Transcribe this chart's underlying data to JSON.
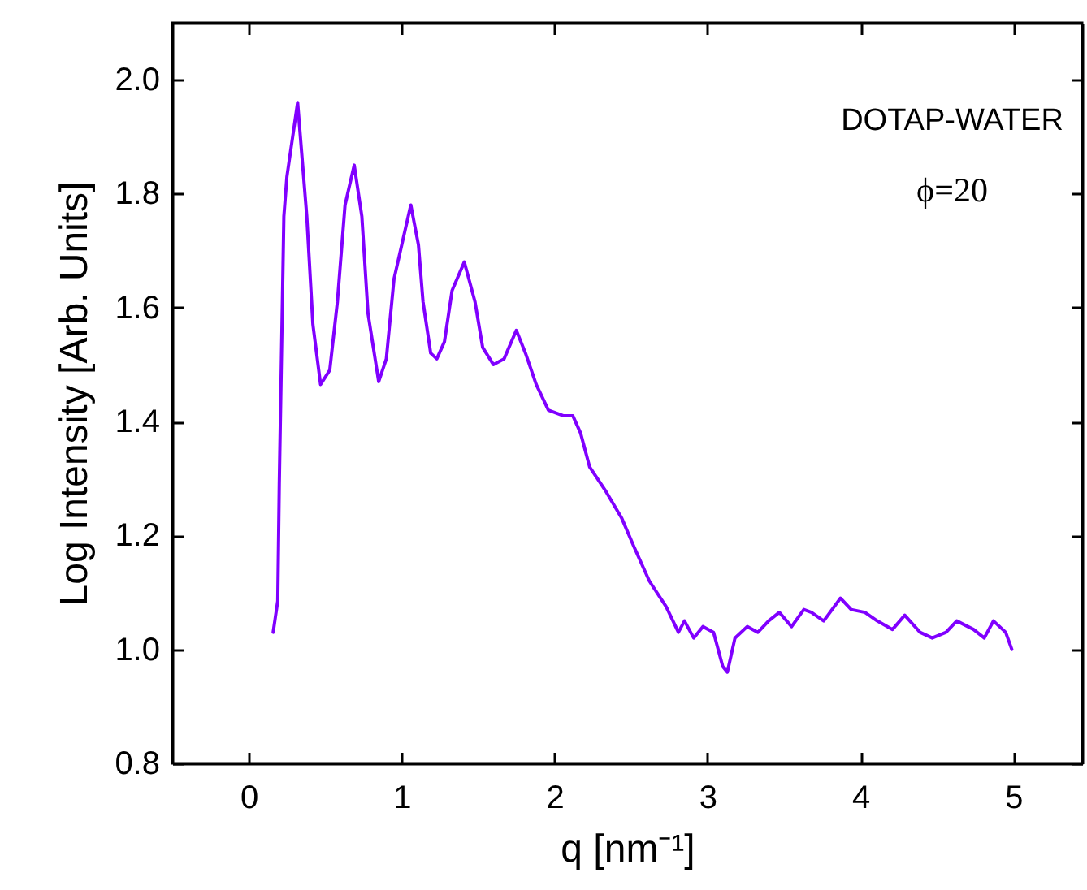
{
  "chart_data": {
    "type": "line",
    "xlabel": "q [nm⁻¹]",
    "ylabel": "Log Intensity [Arb. Units]",
    "annotations": [
      "DOTAP-WATER",
      "ϕ=20"
    ],
    "xlim": [
      -0.5,
      5.45
    ],
    "ylim": [
      0.8,
      2.1
    ],
    "xticks": [
      0,
      1,
      2,
      3,
      4,
      5
    ],
    "yticks": [
      0.8,
      {
        "value": 1,
        "label": "1.0"
      },
      1.2,
      1.4,
      1.6,
      1.8,
      {
        "value": 2,
        "label": "2.0"
      }
    ],
    "grid": false,
    "marker": "none",
    "line_style": "solid",
    "series": [
      {
        "color": "#8000ff",
        "x": [
          0.16,
          0.19,
          0.2,
          0.23,
          0.25,
          0.32,
          0.38,
          0.42,
          0.47,
          0.53,
          0.58,
          0.63,
          0.69,
          0.74,
          0.78,
          0.85,
          0.9,
          0.95,
          1.06,
          1.11,
          1.14,
          1.19,
          1.23,
          1.28,
          1.33,
          1.41,
          1.48,
          1.53,
          1.6,
          1.67,
          1.75,
          1.81,
          1.88,
          1.96,
          2.06,
          2.12,
          2.17,
          2.23,
          2.33,
          2.44,
          2.52,
          2.62,
          2.73,
          2.81,
          2.85,
          2.91,
          2.97,
          3.04,
          3.1,
          3.13,
          3.18,
          3.26,
          3.33,
          3.4,
          3.47,
          3.55,
          3.63,
          3.68,
          3.76,
          3.87,
          3.94,
          4.03,
          4.11,
          4.21,
          4.29,
          4.39,
          4.47,
          4.56,
          4.63,
          4.74,
          4.81,
          4.87,
          4.95,
          4.99
        ],
        "values": [
          1.03,
          1.085,
          1.29,
          1.76,
          1.83,
          1.96,
          1.76,
          1.57,
          1.465,
          1.49,
          1.61,
          1.78,
          1.85,
          1.76,
          1.59,
          1.47,
          1.51,
          1.65,
          1.78,
          1.71,
          1.61,
          1.52,
          1.51,
          1.54,
          1.63,
          1.68,
          1.61,
          1.53,
          1.5,
          1.51,
          1.56,
          1.52,
          1.465,
          1.42,
          1.41,
          1.41,
          1.38,
          1.32,
          1.28,
          1.23,
          1.18,
          1.12,
          1.075,
          1.03,
          1.05,
          1.02,
          1.04,
          1.03,
          0.97,
          0.96,
          1.02,
          1.04,
          1.03,
          1.05,
          1.065,
          1.04,
          1.07,
          1.065,
          1.05,
          1.09,
          1.07,
          1.065,
          1.05,
          1.035,
          1.06,
          1.03,
          1.02,
          1.03,
          1.05,
          1.035,
          1.02,
          1.05,
          1.03,
          1.0
        ]
      }
    ]
  }
}
